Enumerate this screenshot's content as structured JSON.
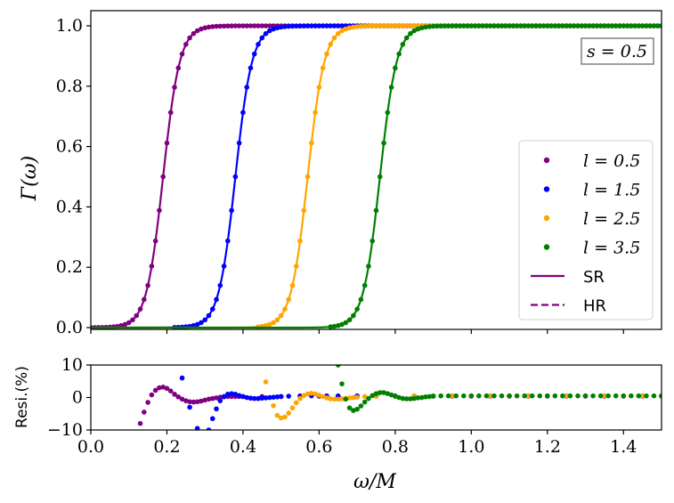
{
  "chart_data": [
    {
      "type": "line",
      "panel": "top",
      "ylabel": "Γ(ω)",
      "xlim": [
        0,
        1.5
      ],
      "ylim": [
        0,
        1.0
      ],
      "yticks": [
        0.0,
        0.2,
        0.4,
        0.6,
        0.8,
        1.0
      ],
      "ytick_labels": [
        "0.0",
        "0.2",
        "0.4",
        "0.6",
        "0.8",
        "1.0"
      ],
      "annotation": "s = 0.5",
      "legend_position": "center-right",
      "legend": [
        {
          "label": "l = 0.5",
          "marker": "dot",
          "color": "#800080"
        },
        {
          "label": "l = 1.5",
          "marker": "dot",
          "color": "#0000ff"
        },
        {
          "label": "l = 2.5",
          "marker": "dot",
          "color": "#ffa500"
        },
        {
          "label": "l = 3.5",
          "marker": "dot",
          "color": "#008000"
        },
        {
          "label": "SR",
          "marker": "solid-line",
          "color": "#800080"
        },
        {
          "label": "HR",
          "marker": "dashed-line",
          "color": "#800080"
        }
      ],
      "series": [
        {
          "name": "l = 0.5",
          "color": "#800080",
          "midpoint": 0.19,
          "width": 0.022,
          "dot_start": 0.0
        },
        {
          "name": "l = 1.5",
          "color": "#0000ff",
          "midpoint": 0.38,
          "width": 0.022,
          "dot_start": 0.22
        },
        {
          "name": "l = 2.5",
          "color": "#ffa500",
          "midpoint": 0.57,
          "width": 0.022,
          "dot_start": 0.44
        },
        {
          "name": "l = 3.5",
          "color": "#008000",
          "midpoint": 0.76,
          "width": 0.022,
          "dot_start": 0.63
        }
      ],
      "dot_step": 0.01
    },
    {
      "type": "scatter",
      "panel": "bottom",
      "xlabel": "ω/M",
      "ylabel": "Resi.(%)",
      "xlim": [
        0,
        1.5
      ],
      "ylim": [
        -10,
        10
      ],
      "xticks": [
        0.0,
        0.2,
        0.4,
        0.6,
        0.8,
        1.0,
        1.2,
        1.4
      ],
      "xtick_labels": [
        "0.0",
        "0.2",
        "0.4",
        "0.6",
        "0.8",
        "1.0",
        "1.2",
        "1.4"
      ],
      "yticks": [
        -10,
        0,
        10
      ],
      "ytick_labels": [
        "−10",
        "0",
        "10"
      ],
      "series": [
        {
          "name": "l = 0.5",
          "color": "#800080",
          "points": [
            [
              0.13,
              -8
            ],
            [
              0.14,
              -4.5
            ],
            [
              0.15,
              -1.5
            ],
            [
              0.16,
              0.8
            ],
            [
              0.17,
              2.2
            ],
            [
              0.18,
              3.0
            ],
            [
              0.19,
              3.2
            ],
            [
              0.2,
              2.8
            ],
            [
              0.21,
              2.0
            ],
            [
              0.22,
              1.0
            ],
            [
              0.23,
              0.2
            ],
            [
              0.24,
              -0.5
            ],
            [
              0.25,
              -1.0
            ],
            [
              0.26,
              -1.3
            ],
            [
              0.27,
              -1.4
            ],
            [
              0.28,
              -1.3
            ],
            [
              0.29,
              -1.1
            ],
            [
              0.3,
              -0.8
            ],
            [
              0.31,
              -0.5
            ],
            [
              0.32,
              -0.3
            ],
            [
              0.33,
              -0.1
            ],
            [
              0.34,
              0.1
            ],
            [
              0.35,
              0.2
            ],
            [
              0.36,
              0.3
            ],
            [
              0.37,
              0.3
            ],
            [
              0.38,
              0.3
            ],
            [
              0.39,
              0.3
            ],
            [
              0.4,
              0.3
            ],
            [
              0.45,
              0.3
            ],
            [
              0.5,
              0.3
            ],
            [
              0.55,
              0.3
            ],
            [
              0.6,
              0.4
            ],
            [
              0.65,
              0.4
            ],
            [
              0.7,
              0.4
            ],
            [
              0.75,
              0.4
            ],
            [
              0.8,
              0.4
            ],
            [
              0.85,
              0.4
            ],
            [
              0.9,
              0.4
            ],
            [
              0.95,
              0.4
            ],
            [
              1.0,
              0.4
            ],
            [
              1.05,
              0.4
            ],
            [
              1.1,
              0.4
            ],
            [
              1.15,
              0.4
            ],
            [
              1.2,
              0.4
            ],
            [
              1.25,
              0.4
            ],
            [
              1.3,
              0.4
            ],
            [
              1.35,
              0.4
            ],
            [
              1.4,
              0.4
            ],
            [
              1.45,
              0.4
            ],
            [
              1.5,
              0.4
            ]
          ]
        },
        {
          "name": "l = 1.5",
          "color": "#0000ff",
          "points": [
            [
              0.24,
              6.0
            ],
            [
              0.26,
              -3.0
            ],
            [
              0.28,
              -9.5
            ],
            [
              0.29,
              -12
            ],
            [
              0.31,
              -10
            ],
            [
              0.32,
              -6.5
            ],
            [
              0.33,
              -3.5
            ],
            [
              0.34,
              -1.0
            ],
            [
              0.35,
              0.3
            ],
            [
              0.36,
              1.0
            ],
            [
              0.37,
              1.2
            ],
            [
              0.38,
              1.0
            ],
            [
              0.39,
              0.6
            ],
            [
              0.4,
              0.3
            ],
            [
              0.41,
              0.0
            ],
            [
              0.42,
              -0.2
            ],
            [
              0.43,
              -0.3
            ],
            [
              0.44,
              -0.3
            ],
            [
              0.45,
              -0.2
            ],
            [
              0.46,
              -0.1
            ],
            [
              0.47,
              0.0
            ],
            [
              0.48,
              0.1
            ],
            [
              0.49,
              0.2
            ],
            [
              0.5,
              0.3
            ],
            [
              0.52,
              0.4
            ],
            [
              0.55,
              0.5
            ],
            [
              0.58,
              0.5
            ],
            [
              0.6,
              0.5
            ],
            [
              0.62,
              0.5
            ],
            [
              0.65,
              0.5
            ],
            [
              0.7,
              0.5
            ],
            [
              0.75,
              0.5
            ],
            [
              0.8,
              0.5
            ],
            [
              0.85,
              0.5
            ],
            [
              0.9,
              0.5
            ],
            [
              0.95,
              0.5
            ],
            [
              1.0,
              0.5
            ],
            [
              1.05,
              0.5
            ],
            [
              1.1,
              0.5
            ],
            [
              1.15,
              0.5
            ],
            [
              1.2,
              0.5
            ],
            [
              1.25,
              0.5
            ],
            [
              1.3,
              0.5
            ],
            [
              1.35,
              0.5
            ],
            [
              1.4,
              0.5
            ],
            [
              1.45,
              0.5
            ],
            [
              1.5,
              0.5
            ]
          ]
        },
        {
          "name": "l = 2.5",
          "color": "#ffa500",
          "points": [
            [
              0.46,
              4.8
            ],
            [
              0.48,
              -2.5
            ],
            [
              0.49,
              -5.5
            ],
            [
              0.5,
              -6.3
            ],
            [
              0.51,
              -6.0
            ],
            [
              0.52,
              -4.8
            ],
            [
              0.53,
              -3.2
            ],
            [
              0.54,
              -1.6
            ],
            [
              0.55,
              -0.3
            ],
            [
              0.56,
              0.6
            ],
            [
              0.57,
              1.1
            ],
            [
              0.58,
              1.3
            ],
            [
              0.59,
              1.1
            ],
            [
              0.6,
              0.7
            ],
            [
              0.61,
              0.3
            ],
            [
              0.62,
              -0.1
            ],
            [
              0.63,
              -0.4
            ],
            [
              0.64,
              -0.5
            ],
            [
              0.65,
              -0.5
            ],
            [
              0.66,
              -0.4
            ],
            [
              0.67,
              -0.3
            ],
            [
              0.68,
              -0.1
            ],
            [
              0.69,
              0.0
            ],
            [
              0.7,
              0.1
            ],
            [
              0.72,
              0.3
            ],
            [
              0.75,
              0.4
            ],
            [
              0.8,
              0.4
            ],
            [
              0.85,
              0.5
            ],
            [
              0.9,
              0.5
            ],
            [
              0.95,
              0.5
            ],
            [
              1.0,
              0.5
            ],
            [
              1.05,
              0.5
            ],
            [
              1.1,
              0.5
            ],
            [
              1.15,
              0.5
            ],
            [
              1.2,
              0.5
            ],
            [
              1.25,
              0.5
            ],
            [
              1.3,
              0.5
            ],
            [
              1.35,
              0.5
            ],
            [
              1.4,
              0.5
            ],
            [
              1.45,
              0.5
            ],
            [
              1.5,
              0.5
            ]
          ]
        },
        {
          "name": "l = 3.5",
          "color": "#008000",
          "points": [
            [
              0.65,
              10.0
            ],
            [
              0.66,
              4.2
            ],
            [
              0.67,
              -0.5
            ],
            [
              0.68,
              -3.2
            ],
            [
              0.69,
              -4.0
            ],
            [
              0.7,
              -3.6
            ],
            [
              0.71,
              -2.6
            ],
            [
              0.72,
              -1.4
            ],
            [
              0.73,
              -0.3
            ],
            [
              0.74,
              0.6
            ],
            [
              0.75,
              1.2
            ],
            [
              0.76,
              1.5
            ],
            [
              0.77,
              1.5
            ],
            [
              0.78,
              1.2
            ],
            [
              0.79,
              0.8
            ],
            [
              0.8,
              0.4
            ],
            [
              0.81,
              0.0
            ],
            [
              0.82,
              -0.3
            ],
            [
              0.83,
              -0.4
            ],
            [
              0.84,
              -0.4
            ],
            [
              0.85,
              -0.3
            ],
            [
              0.86,
              -0.1
            ],
            [
              0.87,
              0.0
            ],
            [
              0.88,
              0.2
            ],
            [
              0.89,
              0.3
            ],
            [
              0.9,
              0.4
            ],
            [
              0.92,
              0.5
            ],
            [
              0.94,
              0.5
            ],
            [
              0.96,
              0.5
            ],
            [
              0.98,
              0.5
            ],
            [
              1.0,
              0.5
            ],
            [
              1.02,
              0.5
            ],
            [
              1.04,
              0.5
            ],
            [
              1.06,
              0.5
            ],
            [
              1.08,
              0.5
            ],
            [
              1.1,
              0.5
            ],
            [
              1.12,
              0.5
            ],
            [
              1.14,
              0.5
            ],
            [
              1.16,
              0.5
            ],
            [
              1.18,
              0.5
            ],
            [
              1.2,
              0.5
            ],
            [
              1.22,
              0.5
            ],
            [
              1.24,
              0.5
            ],
            [
              1.26,
              0.5
            ],
            [
              1.28,
              0.5
            ],
            [
              1.3,
              0.5
            ],
            [
              1.32,
              0.5
            ],
            [
              1.34,
              0.5
            ],
            [
              1.36,
              0.5
            ],
            [
              1.38,
              0.5
            ],
            [
              1.4,
              0.5
            ],
            [
              1.42,
              0.5
            ],
            [
              1.44,
              0.5
            ],
            [
              1.46,
              0.5
            ],
            [
              1.48,
              0.5
            ],
            [
              1.5,
              0.5
            ]
          ]
        }
      ]
    }
  ]
}
